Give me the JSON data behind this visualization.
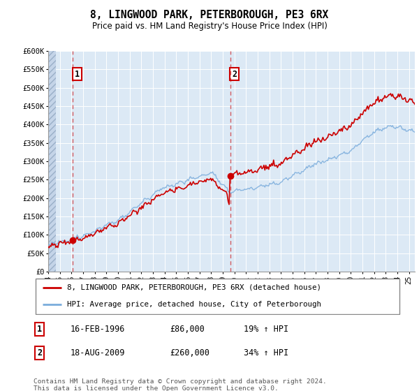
{
  "title": "8, LINGWOOD PARK, PETERBOROUGH, PE3 6RX",
  "subtitle": "Price paid vs. HM Land Registry's House Price Index (HPI)",
  "background_color": "#dce9f5",
  "ylim": [
    0,
    600000
  ],
  "yticks": [
    0,
    50000,
    100000,
    150000,
    200000,
    250000,
    300000,
    350000,
    400000,
    450000,
    500000,
    550000,
    600000
  ],
  "xlim_start": 1994.0,
  "xlim_end": 2025.5,
  "sale1_date": 1996.12,
  "sale1_price": 86000,
  "sale1_label": "1",
  "sale2_date": 2009.63,
  "sale2_price": 260000,
  "sale2_label": "2",
  "red_line_color": "#cc0000",
  "blue_line_color": "#7aacdc",
  "grid_color": "#ffffff",
  "legend_line1": "8, LINGWOOD PARK, PETERBOROUGH, PE3 6RX (detached house)",
  "legend_line2": "HPI: Average price, detached house, City of Peterborough",
  "annotation1_date": "16-FEB-1996",
  "annotation1_price": "£86,000",
  "annotation1_hpi": "19% ↑ HPI",
  "annotation2_date": "18-AUG-2009",
  "annotation2_price": "£260,000",
  "annotation2_hpi": "34% ↑ HPI",
  "copyright_text": "Contains HM Land Registry data © Crown copyright and database right 2024.\nThis data is licensed under the Open Government Licence v3.0."
}
